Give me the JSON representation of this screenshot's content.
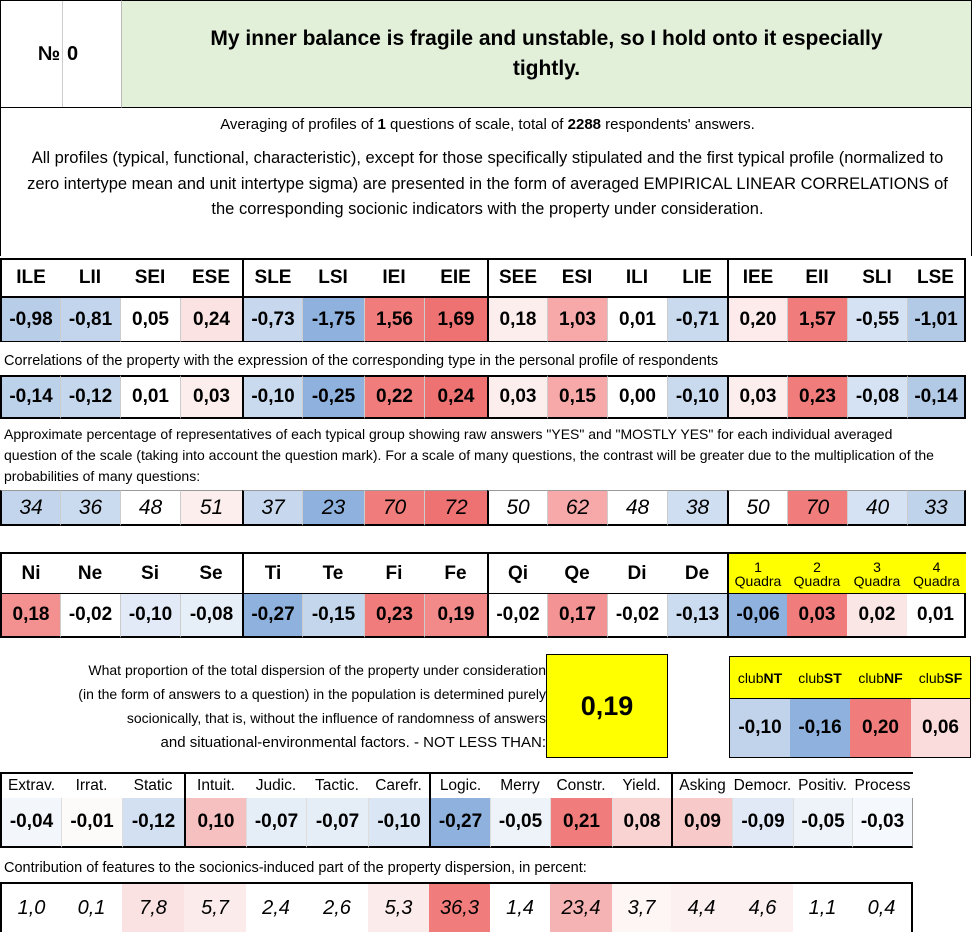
{
  "header": {
    "num_symbol": "№",
    "num_value": "0",
    "title": "My inner balance is fragile and unstable, so I hold onto it especially tightly."
  },
  "info": {
    "averaging_prefix": "Averaging of profiles of ",
    "questions_count": "1",
    "averaging_mid": " questions of scale, total of ",
    "respondents_count": "2288",
    "averaging_suffix": " respondents' answers.",
    "profiles_note": "All profiles (typical, functional, characteristic), except for those specifically stipulated and the first typical profile (normalized to zero intertype mean and unit intertype sigma) are presented in the form of averaged EMPIRICAL LINEAR CORRELATIONS of the corresponding socionic indicators with the property under consideration."
  },
  "types": {
    "labels": [
      "ILE",
      "LII",
      "SEI",
      "ESE",
      "SLE",
      "LSI",
      "IEI",
      "EIE",
      "SEE",
      "ESI",
      "ILI",
      "LIE",
      "IEE",
      "EII",
      "SLI",
      "LSE"
    ],
    "profile": [
      "-0,98",
      "-0,81",
      "0,05",
      "0,24",
      "-0,73",
      "-1,75",
      "1,56",
      "1,69",
      "0,18",
      "1,03",
      "0,01",
      "-0,71",
      "0,20",
      "1,57",
      "-0,55",
      "-1,01"
    ],
    "profile_colors": [
      "#b7cde8",
      "#c3d5ec",
      "#ffffff",
      "#fbe3e3",
      "#c7d8ee",
      "#8eb1dd",
      "#f17c7c",
      "#ee7272",
      "#fdeeee",
      "#f7a9a9",
      "#ffffff",
      "#c9daef",
      "#fdebeb",
      "#f17c7c",
      "#d5e2f3",
      "#b3cae6"
    ],
    "corr_note": "Correlations of the property with the expression of the corresponding type in the personal profile of respondents",
    "correlations": [
      "-0,14",
      "-0,12",
      "0,01",
      "0,03",
      "-0,10",
      "-0,25",
      "0,22",
      "0,24",
      "0,03",
      "0,15",
      "0,00",
      "-0,10",
      "0,03",
      "0,23",
      "-0,08",
      "-0,14"
    ],
    "corr_colors": [
      "#bcd1ea",
      "#c5d7ed",
      "#ffffff",
      "#fdeeee",
      "#c9daef",
      "#8eb1dd",
      "#f17c7c",
      "#ee7272",
      "#fdeeee",
      "#f7a9a9",
      "#ffffff",
      "#c9daef",
      "#fdeeee",
      "#f17c7c",
      "#d5e2f3",
      "#b3cae6"
    ],
    "pct_note": "Approximate percentage of representatives of each typical group showing raw answers \"YES\" and \"MOSTLY YES\" for each individual averaged question of the scale (taking into account the question mark). For a scale of many questions, the contrast will be greater due to the multiplication of the probabilities of many questions:",
    "percentages": [
      "34",
      "36",
      "48",
      "51",
      "37",
      "23",
      "70",
      "72",
      "50",
      "62",
      "48",
      "38",
      "50",
      "70",
      "40",
      "33"
    ],
    "pct_colors": [
      "#c3d5ec",
      "#cbdbef",
      "#ffffff",
      "#fdeeee",
      "#c7d8ee",
      "#8eb1dd",
      "#f17c7c",
      "#ee7272",
      "#ffffff",
      "#f7a9a9",
      "#ffffff",
      "#cfdef1",
      "#ffffff",
      "#f17c7c",
      "#d5e2f3",
      "#bfd3eb"
    ]
  },
  "functions": {
    "labels": [
      "Ni",
      "Ne",
      "Si",
      "Se",
      "Ti",
      "Te",
      "Fi",
      "Fe",
      "Qi",
      "Qe",
      "Di",
      "De"
    ],
    "values": [
      "0,18",
      "-0,02",
      "-0,10",
      "-0,08",
      "-0,27",
      "-0,15",
      "0,23",
      "0,19",
      "-0,02",
      "0,17",
      "-0,02",
      "-0,13"
    ],
    "colors": [
      "#f39090",
      "#ffffff",
      "#e1eaf6",
      "#e6eef7",
      "#8eb1dd",
      "#c4d6ec",
      "#f17c7c",
      "#f28a8a",
      "#ffffff",
      "#f39393",
      "#ffffff",
      "#ccdcf0"
    ]
  },
  "quadras": {
    "nums": [
      "1",
      "2",
      "3",
      "4"
    ],
    "word": "Quadra",
    "values": [
      "-0,06",
      "0,03",
      "0,02",
      "0,01"
    ],
    "colors": [
      "#8eb1dd",
      "#f17c7c",
      "#fbe6e6",
      "#ffffff"
    ]
  },
  "dispersion": {
    "question": "What proportion of the total dispersion of the property under consideration (in the form of answers to a question) in the population is determined purely socionically, that is, without the influence of randomness of answers",
    "question_last": "and situational-environmental factors. - NOT LESS THAN:",
    "value": "0,19"
  },
  "clubs": {
    "prefix": "club",
    "names": [
      "NT",
      "ST",
      "NF",
      "SF"
    ],
    "values": [
      "-0,10",
      "-0,16",
      "0,20",
      "0,06"
    ],
    "colors": [
      "#c0d3eb",
      "#8eb1dd",
      "#f17c7c",
      "#fbdcdc"
    ]
  },
  "features": {
    "labels": [
      "Extrav.",
      "Irrat.",
      "Static",
      "Intuit.",
      "Judic.",
      "Tactic.",
      "Carefr.",
      "Logic.",
      "Merry",
      "Constr.",
      "Yield.",
      "Asking",
      "Democr.",
      "Positiv.",
      "Process"
    ],
    "values": [
      "-0,04",
      "-0,01",
      "-0,12",
      "0,10",
      "-0,07",
      "-0,07",
      "-0,10",
      "-0,27",
      "-0,05",
      "0,21",
      "0,08",
      "0,09",
      "-0,09",
      "-0,05",
      "-0,03"
    ],
    "colors": [
      "#f3f6fb",
      "#fdfafa",
      "#d2e0f2",
      "#f7c0c0",
      "#e5edf7",
      "#e5edf7",
      "#dbe6f4",
      "#8eb1dd",
      "#eef3f9",
      "#f17c7c",
      "#f9d2d2",
      "#f8c9c9",
      "#e0e9f5",
      "#eef3f9",
      "#f5f8fc"
    ],
    "contrib_note": "Contribution of features to the sociоnics-induced part of the property dispersion, in percent:",
    "contrib": [
      "1,0",
      "0,1",
      "7,8",
      "5,7",
      "2,4",
      "2,6",
      "5,3",
      "36,3",
      "1,4",
      "23,4",
      "3,7",
      "4,4",
      "4,6",
      "1,1",
      "0,4"
    ],
    "contrib_colors": [
      "#ffffff",
      "#ffffff",
      "#fbe2e2",
      "#fcebeb",
      "#ffffff",
      "#ffffff",
      "#fcebeb",
      "#f17c7c",
      "#ffffff",
      "#f6b3b3",
      "#fef5f5",
      "#fdf0f0",
      "#fdf0f0",
      "#ffffff",
      "#ffffff"
    ]
  }
}
